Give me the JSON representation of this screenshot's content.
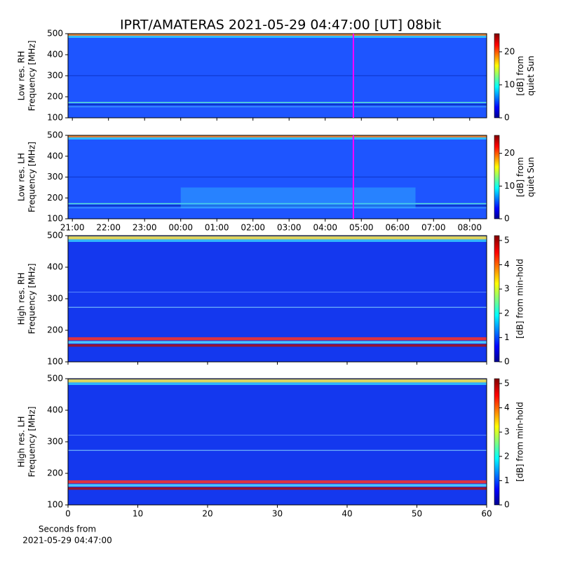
{
  "chart_data": [
    {
      "type": "heatmap",
      "title": "IPRT/AMATERAS 2021-05-29 04:47:00 [UT]   08bit",
      "ylabel": [
        "Low res. RH",
        "Frequency [MHz]"
      ],
      "ylim": [
        100,
        500
      ],
      "yticks": [
        100,
        200,
        300,
        400,
        500
      ],
      "xlim": [
        20.88,
        32.47
      ],
      "marker_x": 28.78,
      "marker_color": "#ff00ff",
      "clabel": [
        "[dB] from",
        "quiet Sun"
      ],
      "clim": [
        0,
        25.5
      ],
      "cticks": [
        0,
        10,
        20
      ]
    },
    {
      "type": "heatmap",
      "ylabel": [
        "Low res. LH",
        "Frequency [MHz]"
      ],
      "ylim": [
        100,
        500
      ],
      "yticks": [
        100,
        200,
        300,
        400,
        500
      ],
      "xlim": [
        20.88,
        32.47
      ],
      "xticks": [
        {
          "value": 21,
          "label": "21:00"
        },
        {
          "value": 22,
          "label": "22:00"
        },
        {
          "value": 23,
          "label": "23:00"
        },
        {
          "value": 24,
          "label": "00:00"
        },
        {
          "value": 25,
          "label": "01:00"
        },
        {
          "value": 26,
          "label": "02:00"
        },
        {
          "value": 27,
          "label": "03:00"
        },
        {
          "value": 28,
          "label": "04:00"
        },
        {
          "value": 29,
          "label": "05:00"
        },
        {
          "value": 30,
          "label": "06:00"
        },
        {
          "value": 31,
          "label": "07:00"
        },
        {
          "value": 32,
          "label": "08:00"
        }
      ],
      "marker_x": 28.78,
      "marker_color": "#ff00ff",
      "clabel": [
        "[dB] from",
        "quiet Sun"
      ],
      "clim": [
        0,
        25.5
      ],
      "cticks": [
        0,
        10,
        20
      ]
    },
    {
      "type": "heatmap",
      "ylabel": [
        "High res. RH",
        "Frequency [MHz]"
      ],
      "ylim": [
        100,
        500
      ],
      "yticks": [
        100,
        200,
        300,
        400,
        500
      ],
      "xlim": [
        0,
        60
      ],
      "clabel": [
        "[dB] from min-hold"
      ],
      "clim": [
        0,
        5.2
      ],
      "cticks": [
        0,
        1,
        2,
        3,
        4,
        5
      ]
    },
    {
      "type": "heatmap",
      "ylabel": [
        "High res. LH",
        "Frequency [MHz]"
      ],
      "ylim": [
        100,
        500
      ],
      "yticks": [
        100,
        200,
        300,
        400,
        500
      ],
      "xlim": [
        0,
        60
      ],
      "xticks": [
        0,
        10,
        20,
        30,
        40,
        50,
        60
      ],
      "xlabel": [
        "Seconds from",
        "2021-05-29 04:47:00"
      ],
      "clabel": [
        "[dB] from min-hold"
      ],
      "clim": [
        0,
        5.2
      ],
      "cticks": [
        0,
        1,
        2,
        3,
        4,
        5
      ]
    }
  ]
}
